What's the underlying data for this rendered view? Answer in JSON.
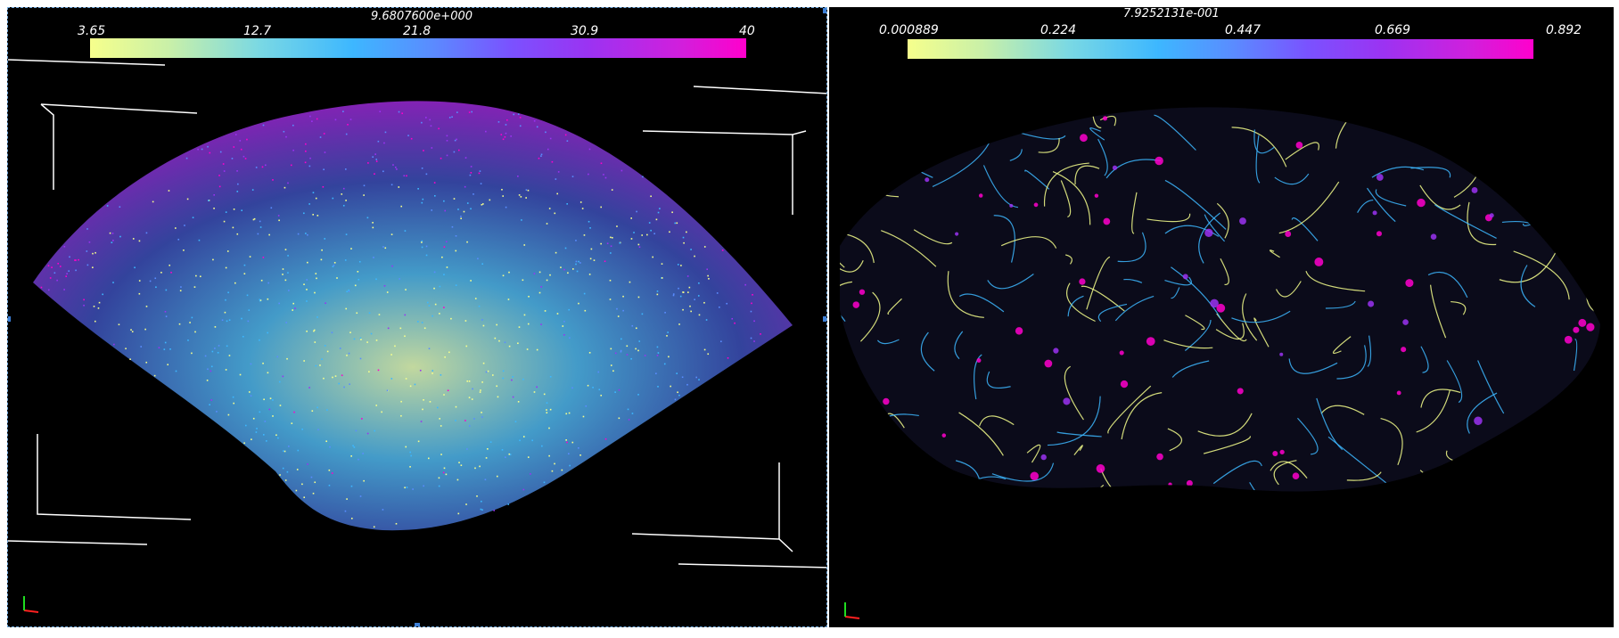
{
  "left_view": {
    "colorbar": {
      "title": "9.6807600e+000",
      "ticks": [
        "3.65",
        "12.7",
        "21.8",
        "30.9",
        "40"
      ]
    }
  },
  "right_view": {
    "colorbar": {
      "title": "7.9252131e-001",
      "ticks": [
        "0.000889",
        "0.224",
        "0.447",
        "0.669",
        "0.892"
      ]
    }
  },
  "colormap": {
    "low": "#f6ff8c",
    "mid_low": "#3db7ff",
    "mid": "#5a8cff",
    "mid_high": "#9b33f2",
    "high": "#ff00cc"
  },
  "axes_gizmo": {
    "x_color": "#ff2020",
    "y_color": "#20dd20"
  }
}
